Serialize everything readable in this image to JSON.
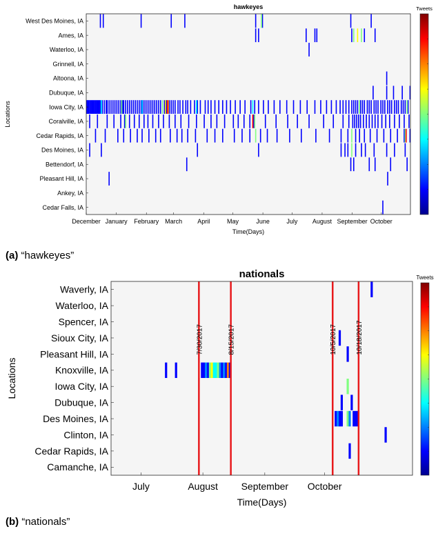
{
  "colors": {
    "background": "#f5f5f5",
    "event_line": "#e8191c",
    "colormap": [
      "#00008f",
      "#0000ff",
      "#0080ff",
      "#00ffff",
      "#80ff80",
      "#ffff00",
      "#ff8000",
      "#ff0000",
      "#800000"
    ]
  },
  "captions": {
    "a_label": "(a)",
    "a_text": "“hawkeyes”",
    "b_label": "(b)",
    "b_text": "“nationals”"
  },
  "chart_data": [
    {
      "type": "heatmap",
      "title": "hawkeyes",
      "xlabel": "Time(Days)",
      "ylabel": "Locations",
      "colorbar_label": "Tweets",
      "x_start": "2016-12-01",
      "x_end": "2017-10-31",
      "x_ticks": [
        {
          "date": "2016-12-01",
          "label": "December"
        },
        {
          "date": "2017-01-01",
          "label": "January"
        },
        {
          "date": "2017-02-01",
          "label": "February"
        },
        {
          "date": "2017-03-01",
          "label": "March"
        },
        {
          "date": "2017-04-01",
          "label": "April"
        },
        {
          "date": "2017-05-01",
          "label": "May"
        },
        {
          "date": "2017-06-01",
          "label": "June"
        },
        {
          "date": "2017-07-01",
          "label": "July"
        },
        {
          "date": "2017-08-01",
          "label": "August"
        },
        {
          "date": "2017-09-01",
          "label": "September"
        },
        {
          "date": "2017-10-01",
          "label": "October"
        }
      ],
      "locations": [
        "West Des Moines, IA",
        "Ames, IA",
        "Waterloo, IA",
        "Grinnell, IA",
        "Altoona, IA",
        "Dubuque, IA",
        "Iowa City, IA",
        "Coralville, IA",
        "Cedar Rapids, IA",
        "Des Moines, IA",
        "Bettendorf, IA",
        "Pleasant Hill, IA",
        "Ankey, IA",
        "Cedar Falls, IA"
      ],
      "cells": [
        {
          "loc": 0,
          "dates": [
            "2016-12-15",
            "2016-12-18",
            "2017-01-26",
            "2017-02-26",
            "2017-03-12",
            "2017-05-24",
            "2017-05-31",
            "2017-08-30",
            "2017-09-20"
          ],
          "level": 0.15
        },
        {
          "loc": 0,
          "dates": [
            "2017-05-30"
          ],
          "level": 0.45
        },
        {
          "loc": 1,
          "dates": [
            "2017-05-24",
            "2017-05-27",
            "2017-07-15",
            "2017-07-24",
            "2017-07-26",
            "2017-08-31",
            "2017-09-13",
            "2017-09-24"
          ],
          "level": 0.15
        },
        {
          "loc": 1,
          "dates": [
            "2017-09-02",
            "2017-09-10"
          ],
          "level": 0.45
        },
        {
          "loc": 1,
          "dates": [
            "2017-09-06"
          ],
          "level": 0.65
        },
        {
          "loc": 2,
          "dates": [
            "2017-07-18"
          ],
          "level": 0.15
        },
        {
          "loc": 4,
          "dates": [
            "2017-10-06"
          ],
          "level": 0.15
        },
        {
          "loc": 5,
          "dates": [
            "2017-09-22",
            "2017-10-06",
            "2017-10-13",
            "2017-10-22",
            "2017-10-30"
          ],
          "level": 0.15
        },
        {
          "loc": 6,
          "dates": [
            "2016-12-01",
            "2016-12-02",
            "2016-12-03",
            "2016-12-04",
            "2016-12-05",
            "2016-12-06",
            "2016-12-07",
            "2016-12-08",
            "2016-12-09",
            "2016-12-10",
            "2016-12-11",
            "2016-12-12",
            "2016-12-13",
            "2016-12-14",
            "2016-12-15",
            "2016-12-17",
            "2016-12-19",
            "2016-12-21",
            "2016-12-22",
            "2016-12-24",
            "2016-12-26",
            "2016-12-28",
            "2016-12-30",
            "2017-01-01",
            "2017-01-03",
            "2017-01-05",
            "2017-01-07",
            "2017-01-08",
            "2017-01-10",
            "2017-01-12",
            "2017-01-14",
            "2017-01-16",
            "2017-01-18",
            "2017-01-20",
            "2017-01-22",
            "2017-01-24",
            "2017-01-26",
            "2017-01-28",
            "2017-01-30",
            "2017-02-01",
            "2017-02-03",
            "2017-02-05",
            "2017-02-07",
            "2017-02-09",
            "2017-02-11",
            "2017-02-13",
            "2017-02-15",
            "2017-02-19",
            "2017-02-21",
            "2017-02-24",
            "2017-02-26",
            "2017-02-28",
            "2017-03-02",
            "2017-03-05",
            "2017-03-07",
            "2017-03-10",
            "2017-03-13",
            "2017-03-15",
            "2017-03-18",
            "2017-03-22",
            "2017-03-25",
            "2017-03-28",
            "2017-04-02",
            "2017-04-05",
            "2017-04-08",
            "2017-04-12",
            "2017-04-16",
            "2017-04-20",
            "2017-04-24",
            "2017-04-28",
            "2017-05-03",
            "2017-05-08",
            "2017-05-13",
            "2017-05-19",
            "2017-05-23",
            "2017-05-27",
            "2017-06-01",
            "2017-06-06",
            "2017-06-12",
            "2017-06-18",
            "2017-06-25",
            "2017-07-02",
            "2017-07-09",
            "2017-07-16",
            "2017-07-24",
            "2017-07-30",
            "2017-08-05",
            "2017-08-10",
            "2017-08-15",
            "2017-08-19",
            "2017-08-22",
            "2017-08-25",
            "2017-08-28",
            "2017-08-31",
            "2017-09-02",
            "2017-09-04",
            "2017-09-06",
            "2017-09-09",
            "2017-09-11",
            "2017-09-13",
            "2017-09-16",
            "2017-09-18",
            "2017-09-20",
            "2017-09-23",
            "2017-09-25",
            "2017-09-27",
            "2017-09-30",
            "2017-10-02",
            "2017-10-04",
            "2017-10-07",
            "2017-10-09",
            "2017-10-11",
            "2017-10-14",
            "2017-10-16",
            "2017-10-18",
            "2017-10-21",
            "2017-10-23",
            "2017-10-25",
            "2017-10-28"
          ],
          "level": 0.12
        },
        {
          "loc": 6,
          "dates": [
            "2016-12-16",
            "2017-01-27",
            "2017-03-24",
            "2017-05-21"
          ],
          "level": 0.4
        },
        {
          "loc": 6,
          "dates": [
            "2017-01-06",
            "2017-02-17",
            "2017-09-08",
            "2017-10-27"
          ],
          "level": 0.5
        },
        {
          "loc": 6,
          "dates": [
            "2017-02-20"
          ],
          "level": 0.62
        },
        {
          "loc": 6,
          "dates": [
            "2017-02-22"
          ],
          "level": 0.88
        },
        {
          "loc": 6,
          "dates": [
            "2017-02-23"
          ],
          "level": 0.72
        },
        {
          "loc": 7,
          "dates": [
            "2016-12-04",
            "2016-12-12",
            "2016-12-22",
            "2016-12-29",
            "2017-01-05",
            "2017-01-09",
            "2017-01-14",
            "2017-01-19",
            "2017-01-24",
            "2017-01-29",
            "2017-02-02",
            "2017-02-07",
            "2017-02-13",
            "2017-02-18",
            "2017-02-24",
            "2017-03-02",
            "2017-03-08",
            "2017-03-16",
            "2017-03-24",
            "2017-04-01",
            "2017-04-08",
            "2017-04-14",
            "2017-04-22",
            "2017-05-01",
            "2017-05-06",
            "2017-05-12",
            "2017-05-18",
            "2017-05-22",
            "2017-06-03",
            "2017-06-14",
            "2017-06-26",
            "2017-07-06",
            "2017-07-18",
            "2017-08-02",
            "2017-08-12",
            "2017-08-22",
            "2017-08-28",
            "2017-09-01",
            "2017-09-03",
            "2017-09-05",
            "2017-09-07",
            "2017-09-09",
            "2017-09-12",
            "2017-09-15",
            "2017-09-18",
            "2017-09-21",
            "2017-09-24",
            "2017-09-27",
            "2017-10-01",
            "2017-10-05",
            "2017-10-09",
            "2017-10-14",
            "2017-10-19",
            "2017-10-24",
            "2017-10-29"
          ],
          "level": 0.12
        },
        {
          "loc": 7,
          "dates": [
            "2017-01-10",
            "2017-05-23"
          ],
          "level": 0.5
        },
        {
          "loc": 7,
          "dates": [
            "2017-05-21"
          ],
          "level": 0.9
        },
        {
          "loc": 8,
          "dates": [
            "2016-12-10",
            "2016-12-20",
            "2017-01-02",
            "2017-01-08",
            "2017-01-15",
            "2017-01-22",
            "2017-01-27",
            "2017-02-03",
            "2017-02-10",
            "2017-02-15",
            "2017-02-25",
            "2017-03-04",
            "2017-03-09",
            "2017-03-15",
            "2017-03-23",
            "2017-04-04",
            "2017-04-12",
            "2017-04-20",
            "2017-05-02",
            "2017-05-10",
            "2017-05-18",
            "2017-05-29",
            "2017-06-05",
            "2017-06-15",
            "2017-06-28",
            "2017-07-10",
            "2017-07-25",
            "2017-08-08",
            "2017-08-20",
            "2017-08-27",
            "2017-09-04",
            "2017-09-08",
            "2017-09-13",
            "2017-09-19",
            "2017-09-26",
            "2017-10-03",
            "2017-10-10",
            "2017-10-17",
            "2017-10-24",
            "2017-10-30"
          ],
          "level": 0.12
        },
        {
          "loc": 8,
          "dates": [
            "2017-05-24",
            "2017-08-31",
            "2017-10-25"
          ],
          "level": 0.45
        },
        {
          "loc": 8,
          "dates": [
            "2017-10-26"
          ],
          "level": 0.9
        },
        {
          "loc": 9,
          "dates": [
            "2016-12-04",
            "2016-12-16",
            "2017-03-25",
            "2017-05-27",
            "2017-08-20",
            "2017-08-24",
            "2017-08-27",
            "2017-09-04",
            "2017-09-10",
            "2017-09-14",
            "2017-09-23",
            "2017-10-06",
            "2017-10-14",
            "2017-10-25"
          ],
          "level": 0.12
        },
        {
          "loc": 9,
          "dates": [
            "2017-08-31"
          ],
          "level": 0.5
        },
        {
          "loc": 10,
          "dates": [
            "2017-03-14",
            "2017-08-30",
            "2017-09-02",
            "2017-09-18",
            "2017-09-24",
            "2017-10-10",
            "2017-10-27"
          ],
          "level": 0.12
        },
        {
          "loc": 11,
          "dates": [
            "2016-12-24",
            "2017-10-07"
          ],
          "level": 0.12
        },
        {
          "loc": 13,
          "dates": [
            "2017-10-02"
          ],
          "level": 0.12
        }
      ]
    },
    {
      "type": "heatmap",
      "title": "nationals",
      "xlabel": "Time(Days)",
      "ylabel": "Locations",
      "colorbar_label": "Tweets",
      "x_start": "2017-06-16",
      "x_end": "2017-11-14",
      "x_ticks": [
        {
          "date": "2017-07-01",
          "label": "July"
        },
        {
          "date": "2017-08-01",
          "label": "August"
        },
        {
          "date": "2017-09-01",
          "label": "September"
        },
        {
          "date": "2017-10-01",
          "label": "October"
        }
      ],
      "locations": [
        "Waverly, IA",
        "Waterloo, IA",
        "Spencer, IA",
        "Sioux City, IA",
        "Pleasant Hill, IA",
        "Knoxville, IA",
        "Iowa City, IA",
        "Dubuque, IA",
        "Des Moines, IA",
        "Clinton, IA",
        "Cedar Rapids, IA",
        "Camanche, IA"
      ],
      "event_lines": [
        {
          "date": "2017-07-30",
          "label": "7/30/2017"
        },
        {
          "date": "2017-08-15",
          "label": "8/15/2017"
        },
        {
          "date": "2017-10-05",
          "label": "10/5/2017"
        },
        {
          "date": "2017-10-18",
          "label": "10/18/2017"
        }
      ],
      "cells": [
        {
          "loc": 0,
          "dates": [
            "2017-10-24"
          ],
          "level": 0.15
        },
        {
          "loc": 3,
          "dates": [
            "2017-10-08"
          ],
          "level": 0.15
        },
        {
          "loc": 4,
          "dates": [
            "2017-10-12"
          ],
          "level": 0.15
        },
        {
          "loc": 5,
          "dates": [
            "2017-07-13",
            "2017-07-18",
            "2017-07-31",
            "2017-08-01",
            "2017-08-03",
            "2017-08-10",
            "2017-08-12"
          ],
          "level": 0.12
        },
        {
          "loc": 5,
          "dates": [
            "2017-08-02",
            "2017-08-09"
          ],
          "level": 0.3
        },
        {
          "loc": 5,
          "dates": [
            "2017-08-04"
          ],
          "level": 0.5
        },
        {
          "loc": 5,
          "dates": [
            "2017-08-05"
          ],
          "level": 0.62
        },
        {
          "loc": 5,
          "dates": [
            "2017-08-06",
            "2017-08-07"
          ],
          "level": 0.35
        },
        {
          "loc": 5,
          "dates": [
            "2017-08-08"
          ],
          "level": 0.45
        },
        {
          "loc": 5,
          "dates": [
            "2017-08-11"
          ],
          "level": 0.2
        },
        {
          "loc": 5,
          "dates": [
            "2017-08-13"
          ],
          "level": 0.75
        },
        {
          "loc": 5,
          "dates": [
            "2017-08-14"
          ],
          "level": 0.18
        },
        {
          "loc": 6,
          "dates": [
            "2017-10-12"
          ],
          "level": 0.5
        },
        {
          "loc": 7,
          "dates": [
            "2017-10-09",
            "2017-10-14"
          ],
          "level": 0.15
        },
        {
          "loc": 8,
          "dates": [
            "2017-10-06",
            "2017-10-08",
            "2017-10-09",
            "2017-10-15",
            "2017-10-16",
            "2017-10-17"
          ],
          "level": 0.15
        },
        {
          "loc": 8,
          "dates": [
            "2017-10-07"
          ],
          "level": 0.25
        },
        {
          "loc": 8,
          "dates": [
            "2017-10-12"
          ],
          "level": 0.5
        },
        {
          "loc": 8,
          "dates": [
            "2017-10-13"
          ],
          "level": 0.3
        },
        {
          "loc": 9,
          "dates": [
            "2017-10-31"
          ],
          "level": 0.15
        },
        {
          "loc": 10,
          "dates": [
            "2017-10-13"
          ],
          "level": 0.15
        }
      ]
    }
  ]
}
